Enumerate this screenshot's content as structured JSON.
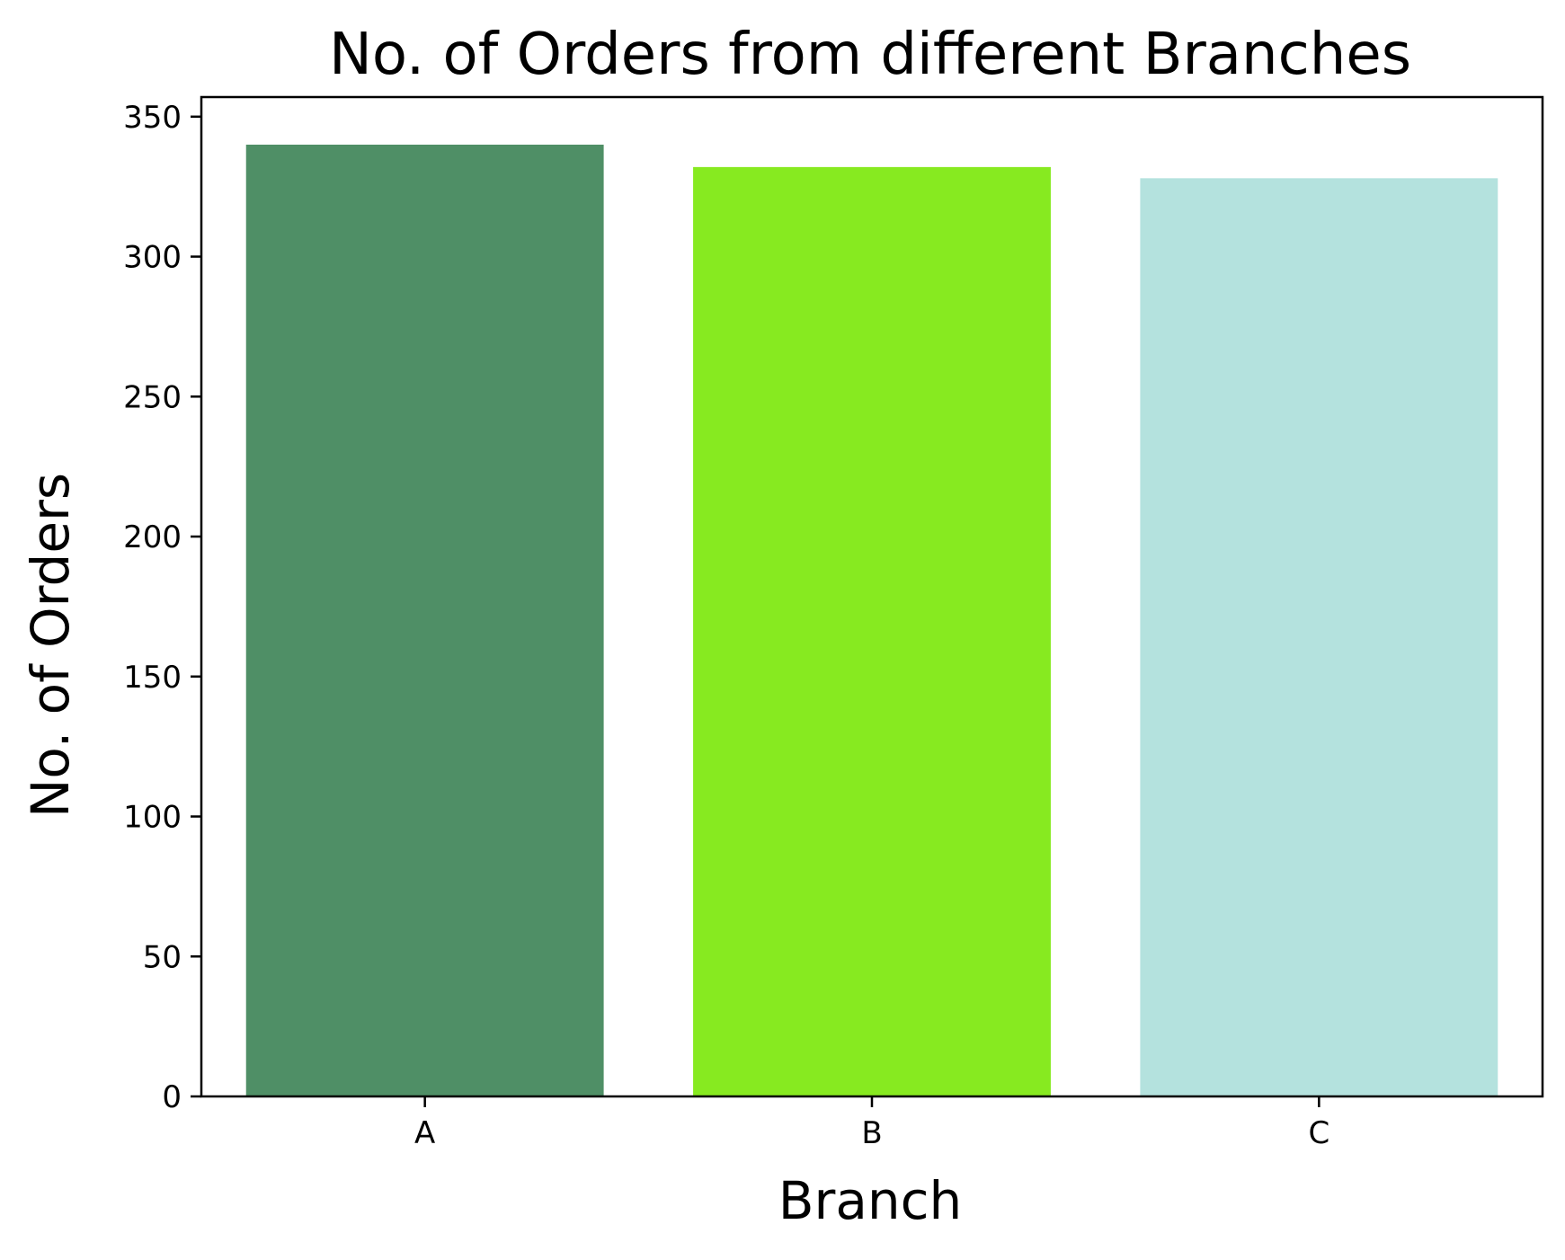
{
  "chart_data": {
    "type": "bar",
    "title": "No. of Orders from different Branches",
    "xlabel": "Branch",
    "ylabel": "No. of Orders",
    "categories": [
      "A",
      "B",
      "C"
    ],
    "values": [
      340,
      332,
      328
    ],
    "colors": [
      "#4f8f66",
      "#87ea20",
      "#b4e2de"
    ],
    "ylim": [
      0,
      357
    ],
    "yticks": [
      0,
      50,
      100,
      150,
      200,
      250,
      300,
      350
    ],
    "grid": false,
    "legend": "none"
  }
}
